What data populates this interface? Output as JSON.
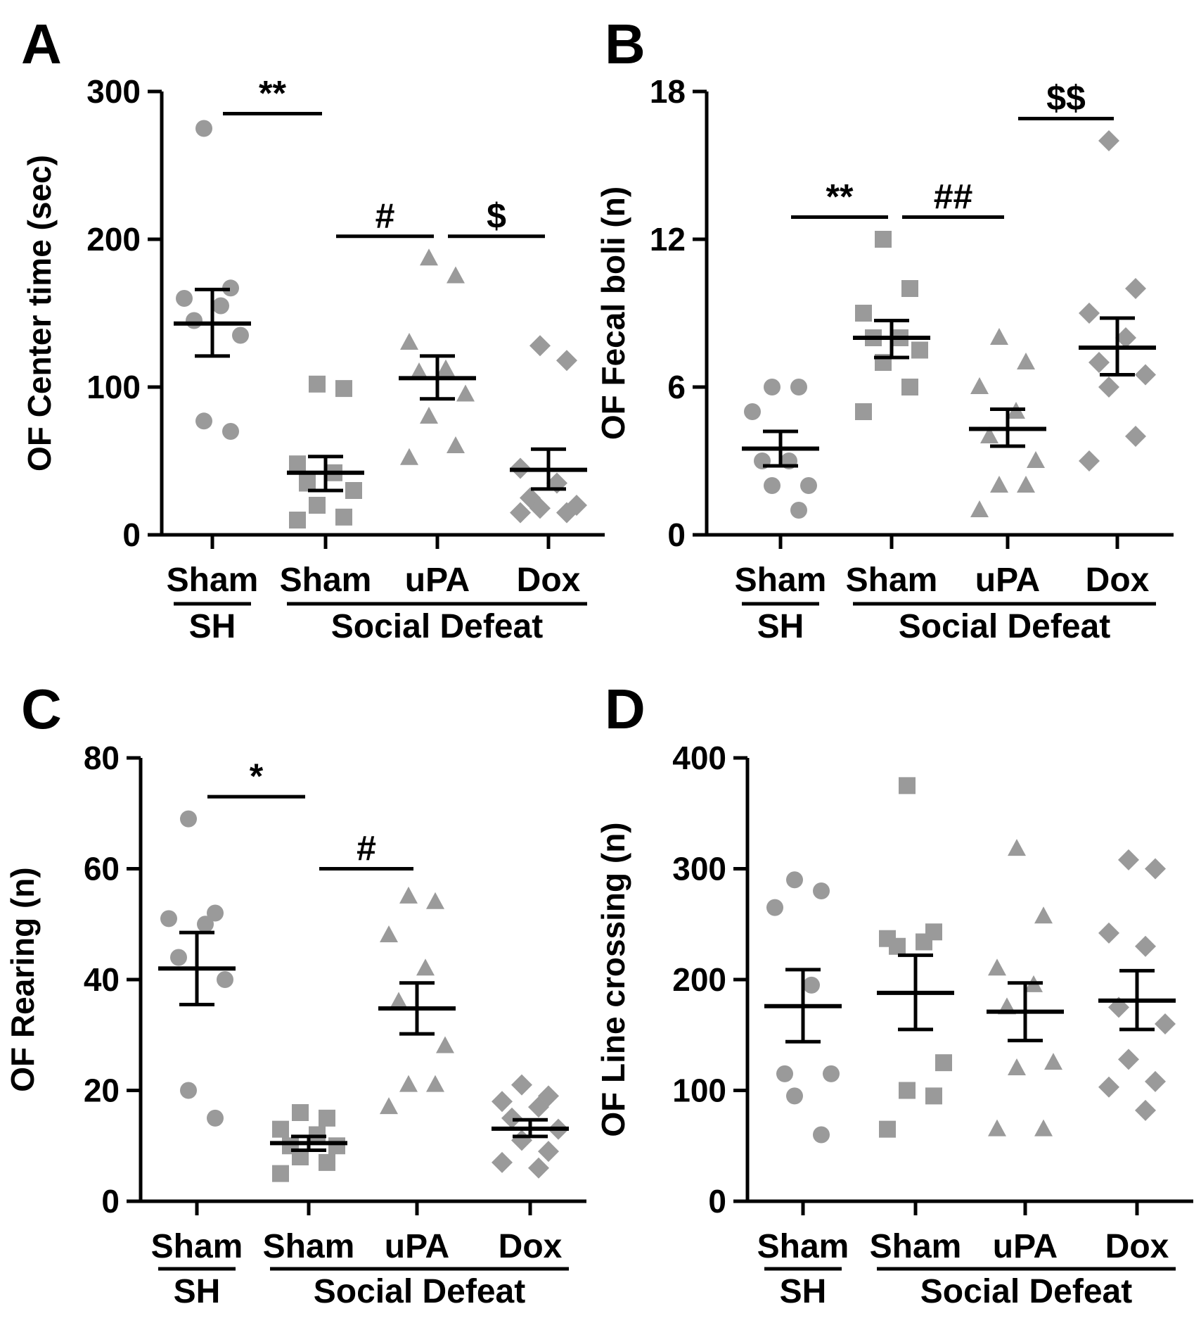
{
  "chart_data": [
    {
      "type": "scatter",
      "panel_letter": "A",
      "ylabel": "OF Center time (sec)",
      "ylim": [
        0,
        300
      ],
      "yticks": [
        "0",
        "100",
        "200",
        "300"
      ],
      "categories": [
        "Sham",
        "Sham",
        "uPA",
        "Dox"
      ],
      "group_labels": [
        {
          "label": "SH",
          "categories": [
            0
          ]
        },
        {
          "label": "Social Defeat",
          "categories": [
            1,
            2,
            3
          ]
        }
      ],
      "series": [
        {
          "category": "Sham",
          "marker": "circle",
          "points": [
            275,
            167,
            160,
            155,
            145,
            135,
            77,
            70
          ],
          "mean": 143,
          "sem_low": 121,
          "sem_high": 166
        },
        {
          "category": "Sham",
          "marker": "square",
          "points": [
            102,
            99,
            48,
            42,
            35,
            30,
            20,
            12,
            10
          ],
          "mean": 42,
          "sem_low": 30,
          "sem_high": 53
        },
        {
          "category": "uPA",
          "marker": "triangle",
          "points": [
            187,
            175,
            130,
            112,
            110,
            95,
            80,
            60,
            52
          ],
          "mean": 106,
          "sem_low": 92,
          "sem_high": 121
        },
        {
          "category": "Dox",
          "marker": "diamond",
          "points": [
            128,
            118,
            45,
            35,
            25,
            20,
            18,
            15,
            15
          ],
          "mean": 44,
          "sem_low": 31,
          "sem_high": 58
        }
      ],
      "significance": [
        {
          "label": "**",
          "from": 0,
          "to": 1,
          "y": 285
        },
        {
          "label": "#",
          "from": 1,
          "to": 2,
          "y": 202
        },
        {
          "label": "$",
          "from": 2,
          "to": 3,
          "y": 202
        }
      ]
    },
    {
      "type": "scatter",
      "panel_letter": "B",
      "ylabel": "OF Fecal boli (n)",
      "ylim": [
        0,
        18
      ],
      "yticks": [
        "0",
        "6",
        "12",
        "18"
      ],
      "categories": [
        "Sham",
        "Sham",
        "uPA",
        "Dox"
      ],
      "group_labels": [
        {
          "label": "SH",
          "categories": [
            0
          ]
        },
        {
          "label": "Social Defeat",
          "categories": [
            1,
            2,
            3
          ]
        }
      ],
      "series": [
        {
          "category": "Sham",
          "marker": "circle",
          "points": [
            6,
            6,
            5,
            3,
            3,
            2,
            2,
            1
          ],
          "mean": 3.5,
          "sem_low": 2.8,
          "sem_high": 4.2
        },
        {
          "category": "Sham",
          "marker": "square",
          "points": [
            12,
            10,
            9,
            8,
            8,
            7.5,
            7,
            6,
            5
          ],
          "mean": 8,
          "sem_low": 7.2,
          "sem_high": 8.7
        },
        {
          "category": "uPA",
          "marker": "triangle",
          "points": [
            8,
            7,
            6,
            5,
            4,
            3,
            2,
            2,
            1
          ],
          "mean": 4.3,
          "sem_low": 3.6,
          "sem_high": 5.1
        },
        {
          "category": "Dox",
          "marker": "diamond",
          "points": [
            16,
            10,
            9,
            8,
            7,
            6.5,
            6,
            4,
            3
          ],
          "mean": 7.6,
          "sem_low": 6.5,
          "sem_high": 8.8
        }
      ],
      "significance": [
        {
          "label": "**",
          "from": 0,
          "to": 1,
          "y": 12.9
        },
        {
          "label": "##",
          "from": 1,
          "to": 2,
          "y": 12.9
        },
        {
          "label": "$$",
          "from": 2,
          "to": 3,
          "y": 16.9
        }
      ]
    },
    {
      "type": "scatter",
      "panel_letter": "C",
      "ylabel": "OF Rearing (n)",
      "ylim": [
        0,
        80
      ],
      "yticks": [
        "0",
        "20",
        "40",
        "60",
        "80"
      ],
      "categories": [
        "Sham",
        "Sham",
        "uPA",
        "Dox"
      ],
      "group_labels": [
        {
          "label": "SH",
          "categories": [
            0
          ]
        },
        {
          "label": "Social Defeat",
          "categories": [
            1,
            2,
            3
          ]
        }
      ],
      "series": [
        {
          "category": "Sham",
          "marker": "circle",
          "points": [
            69,
            52,
            51,
            50,
            44,
            40,
            20,
            15
          ],
          "mean": 42,
          "sem_low": 35.5,
          "sem_high": 48.5
        },
        {
          "category": "Sham",
          "marker": "square",
          "points": [
            16,
            15,
            13,
            12,
            10,
            10,
            8,
            7,
            5
          ],
          "mean": 10.5,
          "sem_low": 9.2,
          "sem_high": 11.7
        },
        {
          "category": "uPA",
          "marker": "triangle",
          "points": [
            55,
            54,
            48,
            42,
            36,
            28,
            21,
            21,
            17
          ],
          "mean": 34.8,
          "sem_low": 30.2,
          "sem_high": 39.4
        },
        {
          "category": "Dox",
          "marker": "diamond",
          "points": [
            21,
            19,
            18,
            17,
            15,
            13,
            11,
            9,
            7,
            6
          ],
          "mean": 13.1,
          "sem_low": 11.7,
          "sem_high": 14.7
        }
      ],
      "significance": [
        {
          "label": "*",
          "from": 0,
          "to": 1,
          "y": 73
        },
        {
          "label": "#",
          "from": 1,
          "to": 2,
          "y": 60
        }
      ]
    },
    {
      "type": "scatter",
      "panel_letter": "D",
      "ylabel": "OF Line crossing (n)",
      "ylim": [
        0,
        400
      ],
      "yticks": [
        "0",
        "100",
        "200",
        "300",
        "400"
      ],
      "categories": [
        "Sham",
        "Sham",
        "uPA",
        "Dox"
      ],
      "group_labels": [
        {
          "label": "SH",
          "categories": [
            0
          ]
        },
        {
          "label": "Social Defeat",
          "categories": [
            1,
            2,
            3
          ]
        }
      ],
      "series": [
        {
          "category": "Sham",
          "marker": "circle",
          "points": [
            290,
            280,
            265,
            195,
            115,
            115,
            95,
            60
          ],
          "mean": 176,
          "sem_low": 144,
          "sem_high": 209
        },
        {
          "category": "Sham",
          "marker": "square",
          "points": [
            375,
            243,
            237,
            234,
            230,
            125,
            100,
            95,
            65
          ],
          "mean": 188,
          "sem_low": 155,
          "sem_high": 222
        },
        {
          "category": "uPA",
          "marker": "triangle",
          "points": [
            318,
            257,
            210,
            195,
            175,
            125,
            120,
            65,
            65
          ],
          "mean": 171,
          "sem_low": 145,
          "sem_high": 197
        },
        {
          "category": "Dox",
          "marker": "diamond",
          "points": [
            308,
            300,
            242,
            230,
            175,
            160,
            128,
            108,
            103,
            82
          ],
          "mean": 181,
          "sem_low": 155,
          "sem_high": 208
        }
      ],
      "significance": []
    }
  ]
}
